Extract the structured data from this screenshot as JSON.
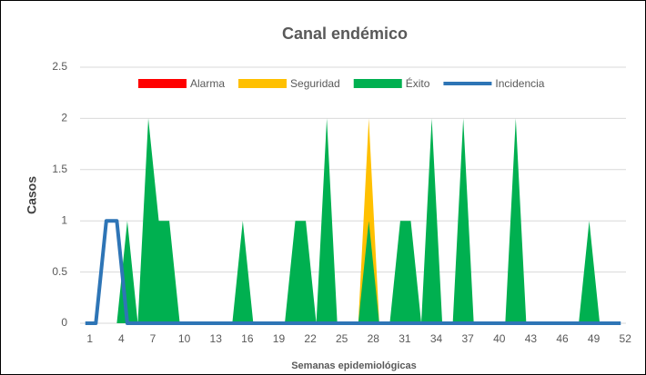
{
  "chart_data": {
    "type": "area",
    "title": "Canal endémico",
    "x_label": "Semanas epidemiológicas",
    "y_label": "Casos",
    "categories": [
      "1",
      null,
      null,
      "4",
      null,
      null,
      "7",
      null,
      null,
      "10",
      null,
      null,
      "13",
      null,
      null,
      "16",
      null,
      null,
      "19",
      null,
      null,
      "22",
      null,
      null,
      "25",
      null,
      null,
      "28",
      null,
      null,
      "31",
      null,
      null,
      "34",
      null,
      null,
      "37",
      null,
      null,
      "40",
      null,
      null,
      "43",
      null,
      null,
      "46",
      null,
      null,
      "49",
      null,
      null,
      "52"
    ],
    "series": [
      {
        "name": "Alarma",
        "kind": "area",
        "color": "#ff0000",
        "values": [
          0,
          0,
          0,
          0,
          0,
          0,
          0,
          0,
          0,
          0,
          0,
          0,
          0,
          0,
          0,
          0,
          0,
          0,
          0,
          0,
          0,
          0,
          0,
          0,
          0,
          0,
          0,
          0,
          0,
          0,
          0,
          0,
          0,
          0,
          0,
          0,
          0,
          0,
          0,
          0,
          0,
          0,
          0,
          0,
          0,
          0,
          0,
          0,
          0,
          0,
          0,
          0
        ]
      },
      {
        "name": "Seguridad",
        "kind": "area",
        "color": "#ffc000",
        "values": [
          0,
          0,
          0,
          0,
          0,
          0,
          0,
          0,
          0,
          0,
          0,
          0,
          0,
          0,
          0,
          0,
          0,
          0,
          0,
          0,
          0,
          0,
          0,
          0,
          0,
          0,
          0,
          2,
          0,
          0,
          0,
          0,
          0,
          0,
          0,
          0,
          0,
          0,
          0,
          0,
          0,
          0,
          0,
          0,
          0,
          0,
          0,
          0,
          0,
          0,
          0,
          0
        ]
      },
      {
        "name": "Éxito",
        "kind": "area",
        "color": "#00b050",
        "values": [
          0,
          0,
          0,
          0,
          1,
          0,
          2,
          1,
          1,
          0,
          0,
          0,
          0,
          0,
          0,
          1,
          0,
          0,
          0,
          0,
          1,
          1,
          0,
          2,
          0,
          0,
          0,
          1,
          0,
          0,
          1,
          1,
          0,
          2,
          0,
          0,
          2,
          0,
          0,
          0,
          0,
          2,
          0,
          0,
          0,
          0,
          0,
          0,
          1,
          0,
          0,
          0
        ]
      },
      {
        "name": "Incidencia",
        "kind": "line",
        "color": "#2e75b6",
        "values": [
          0,
          0,
          1,
          1,
          0,
          0,
          0,
          0,
          0,
          0,
          0,
          0,
          0,
          0,
          0,
          0,
          0,
          0,
          0,
          0,
          0,
          0,
          0,
          0,
          0,
          0,
          0,
          0,
          0,
          0,
          0,
          0,
          0,
          0,
          0,
          0,
          0,
          0,
          0,
          0,
          0,
          0,
          0,
          0,
          0,
          0,
          0,
          0,
          0,
          0,
          0,
          0
        ]
      }
    ],
    "ylim": [
      0,
      2.5
    ],
    "yticks": [
      0,
      0.5,
      1,
      1.5,
      2,
      2.5
    ],
    "grid": true,
    "legend": "top"
  }
}
